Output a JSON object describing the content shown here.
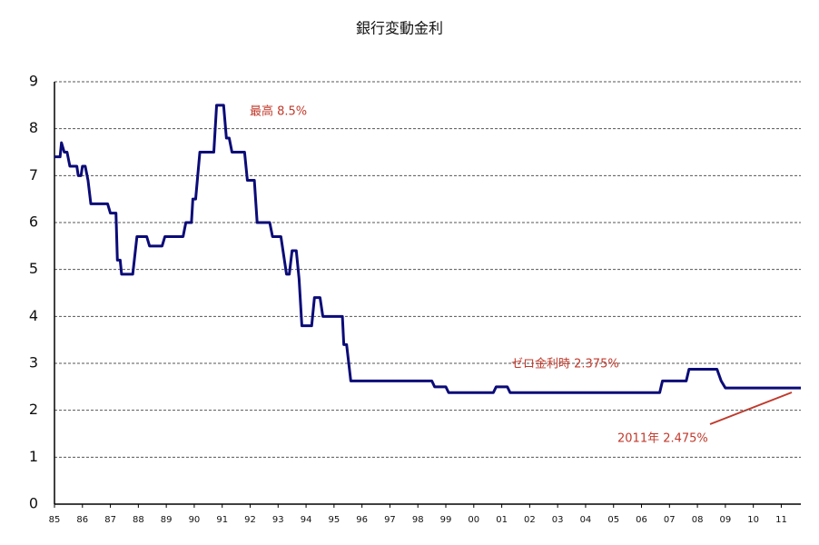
{
  "chart_data": {
    "type": "line",
    "title": "銀行変動金利",
    "x": [
      1985.0,
      1985.2,
      1985.25,
      1985.35,
      1985.45,
      1985.55,
      1985.8,
      1985.85,
      1985.95,
      1986.0,
      1986.1,
      1986.2,
      1986.3,
      1986.9,
      1987.0,
      1987.2,
      1987.25,
      1987.35,
      1987.4,
      1987.8,
      1987.95,
      1988.3,
      1988.4,
      1988.85,
      1988.95,
      1989.6,
      1989.7,
      1989.9,
      1989.95,
      1990.05,
      1990.2,
      1990.7,
      1990.8,
      1991.05,
      1991.15,
      1991.25,
      1991.35,
      1991.8,
      1991.9,
      1992.15,
      1992.25,
      1992.7,
      1992.8,
      1993.1,
      1993.3,
      1993.4,
      1993.5,
      1993.65,
      1993.75,
      1993.85,
      1994.2,
      1994.3,
      1994.5,
      1994.6,
      1995.3,
      1995.35,
      1995.45,
      1995.6,
      1998.5,
      1998.6,
      1999.0,
      1999.1,
      2000.7,
      2000.8,
      2001.2,
      2001.3,
      2006.65,
      2006.75,
      2007.6,
      2007.7,
      2008.7,
      2008.85,
      2009.0,
      2011.7
    ],
    "series": [
      {
        "color": "#0b0b78",
        "values": [
          7.4,
          7.4,
          7.7,
          7.5,
          7.5,
          7.2,
          7.2,
          7.0,
          7.0,
          7.2,
          7.2,
          6.9,
          6.4,
          6.4,
          6.2,
          6.2,
          5.2,
          5.2,
          4.9,
          4.9,
          5.7,
          5.7,
          5.5,
          5.5,
          5.7,
          5.7,
          6.0,
          6.0,
          6.5,
          6.5,
          7.5,
          7.5,
          8.5,
          8.5,
          7.8,
          7.8,
          7.5,
          7.5,
          6.9,
          6.9,
          6.0,
          6.0,
          5.7,
          5.7,
          4.9,
          4.9,
          5.4,
          5.4,
          4.8,
          3.8,
          3.8,
          4.4,
          4.4,
          4.0,
          4.0,
          3.4,
          3.4,
          2.625,
          2.625,
          2.5,
          2.5,
          2.375,
          2.375,
          2.5,
          2.5,
          2.375,
          2.375,
          2.625,
          2.625,
          2.875,
          2.875,
          2.625,
          2.475,
          2.475
        ]
      }
    ],
    "xlim": [
      1985,
      2011.7
    ],
    "xticks": [
      {
        "value": 1985,
        "label": "85"
      },
      {
        "value": 1986,
        "label": "86"
      },
      {
        "value": 1987,
        "label": "87"
      },
      {
        "value": 1988,
        "label": "88"
      },
      {
        "value": 1989,
        "label": "89"
      },
      {
        "value": 1990,
        "label": "90"
      },
      {
        "value": 1991,
        "label": "91"
      },
      {
        "value": 1992,
        "label": "92"
      },
      {
        "value": 1993,
        "label": "93"
      },
      {
        "value": 1994,
        "label": "94"
      },
      {
        "value": 1995,
        "label": "95"
      },
      {
        "value": 1996,
        "label": "96"
      },
      {
        "value": 1997,
        "label": "97"
      },
      {
        "value": 1998,
        "label": "98"
      },
      {
        "value": 1999,
        "label": "99"
      },
      {
        "value": 2000,
        "label": "00"
      },
      {
        "value": 2001,
        "label": "01"
      },
      {
        "value": 2002,
        "label": "02"
      },
      {
        "value": 2003,
        "label": "03"
      },
      {
        "value": 2004,
        "label": "04"
      },
      {
        "value": 2005,
        "label": "05"
      },
      {
        "value": 2006,
        "label": "06"
      },
      {
        "value": 2007,
        "label": "07"
      },
      {
        "value": 2008,
        "label": "08"
      },
      {
        "value": 2009,
        "label": "09"
      },
      {
        "value": 2010,
        "label": "10"
      },
      {
        "value": 2011,
        "label": "11"
      }
    ],
    "ylim": [
      0,
      9
    ],
    "yticks": [
      0,
      1,
      2,
      3,
      4,
      5,
      6,
      7,
      8,
      9
    ],
    "grid": true,
    "annotations": [
      "最高 8.5%",
      "ゼロ金利時 2.375%",
      "2011年 2.475%"
    ]
  }
}
